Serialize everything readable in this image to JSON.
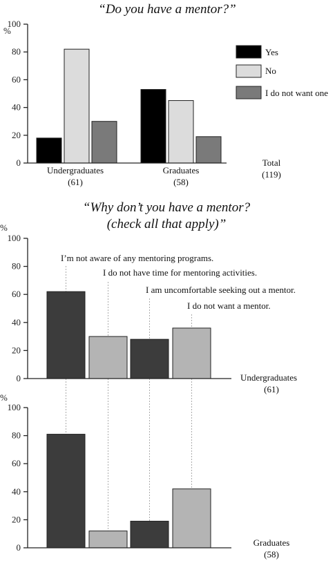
{
  "chart_data": [
    {
      "type": "bar",
      "title": "“Do you have a mentor?”",
      "ylabel": "%",
      "ylim": [
        0,
        100
      ],
      "yticks": [
        "0",
        "20",
        "40",
        "60",
        "80",
        "100"
      ],
      "categories": [
        "Undergraduates",
        "Graduates"
      ],
      "category_counts": [
        "(61)",
        "(58)"
      ],
      "total_label": "Total",
      "total_count": "(119)",
      "legend_position": "right",
      "series": [
        {
          "name": "Yes",
          "color": "#000000",
          "values": [
            18,
            53
          ]
        },
        {
          "name": "No",
          "color": "#dcdcdc",
          "values": [
            82,
            45
          ]
        },
        {
          "name": "I do not want one",
          "color": "#7a7a7a",
          "values": [
            30,
            19
          ]
        }
      ]
    },
    {
      "type": "bar",
      "title_line1": "“Why don’t you have a mentor?",
      "title_line2": "(check all that apply)”",
      "ylabel": "%",
      "ylim": [
        0,
        100
      ],
      "yticks": [
        "0",
        "20",
        "40",
        "60",
        "80",
        "100"
      ],
      "categories": [
        "I’m not aware of any mentoring programs.",
        "I do not have time for mentoring activities.",
        "I am uncomfortable seeking out a mentor.",
        "I do not want a mentor."
      ],
      "category_colors": [
        "#3c3c3c",
        "#b4b4b4",
        "#3c3c3c",
        "#b4b4b4"
      ],
      "panels": [
        {
          "name": "Undergraduates",
          "count": "(61)",
          "values": [
            62,
            30,
            28,
            36
          ]
        },
        {
          "name": "Graduates",
          "count": "(58)",
          "values": [
            81,
            12,
            19,
            42
          ]
        }
      ]
    }
  ]
}
